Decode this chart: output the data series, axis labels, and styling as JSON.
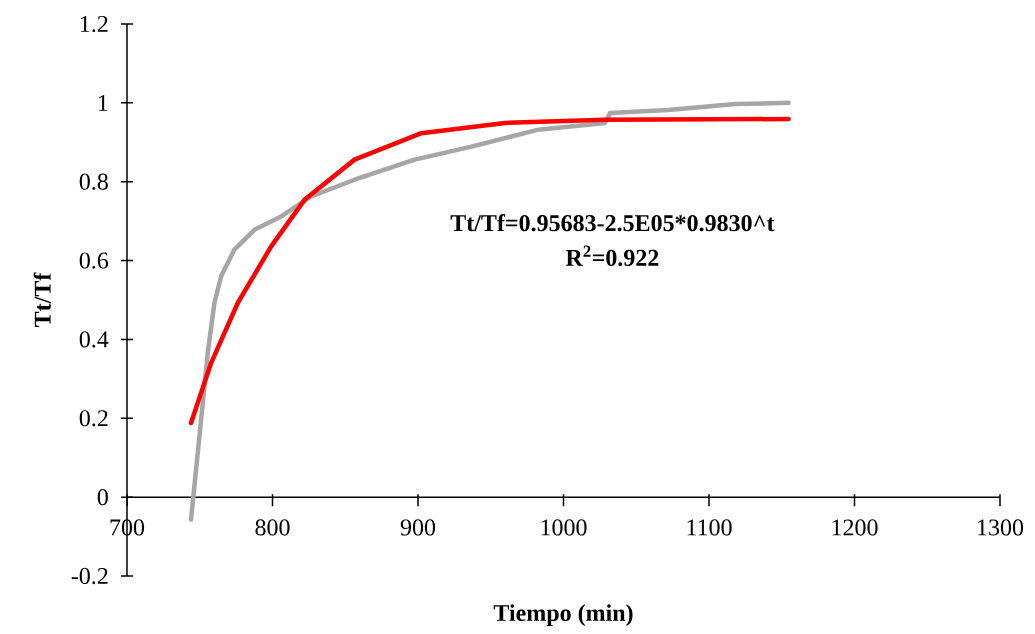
{
  "chart_data": {
    "type": "line",
    "xlabel": "Tiempo (min)",
    "ylabel": "Tt/Tf",
    "xlim": [
      700,
      1300
    ],
    "ylim": [
      -0.2,
      1.2
    ],
    "xticks": [
      700,
      800,
      900,
      1000,
      1100,
      1200,
      1300
    ],
    "yticks": [
      -0.2,
      0,
      0.2,
      0.4,
      0.6,
      0.8,
      1,
      1.2
    ],
    "annotations": [
      "Tt/Tf=0.95683-2.5E05*0.9830^t",
      "R$^{2}$=0.922"
    ],
    "series": [
      {
        "color": "#a6a6a6",
        "x": [
          744,
          749.8,
          755.5,
          760.1,
          764.7,
          773.8,
          787.6,
          806,
          826.6,
          856.4,
          897.7,
          936.8,
          982.7,
          1028.5,
          1032,
          1072,
          1118,
          1154.7
        ],
        "values": [
          -0.057,
          0.155,
          0.366,
          0.493,
          0.56,
          0.628,
          0.678,
          0.712,
          0.763,
          0.805,
          0.856,
          0.889,
          0.932,
          0.949,
          0.974,
          0.982,
          0.997,
          1.0
        ]
      },
      {
        "color": "#ff0000",
        "x": [
          744,
          757.8,
          776.2,
          799.1,
          822,
          856.4,
          902.3,
          959.7,
          1028.5,
          1154.7
        ],
        "values": [
          0.188,
          0.34,
          0.493,
          0.636,
          0.754,
          0.856,
          0.923,
          0.949,
          0.957,
          0.959
        ]
      }
    ]
  }
}
